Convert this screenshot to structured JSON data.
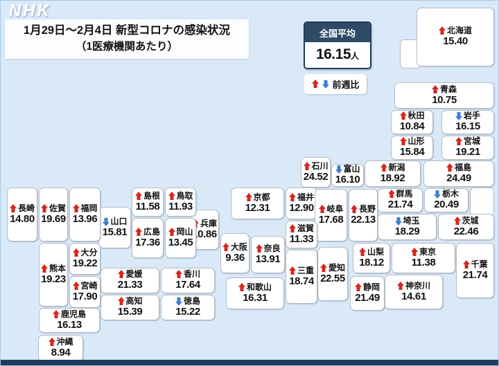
{
  "logo": "NHK",
  "title": {
    "line1": "1月29日～2月4日 新型コロナの感染状況",
    "line2": "（1医療機関あたり）"
  },
  "national_average": {
    "label": "全国平均",
    "value": "16.15",
    "unit": "人"
  },
  "legend": {
    "label": "前週比"
  },
  "colors": {
    "up_arrow": "#d7261d",
    "down_arrow": "#3d7fd4",
    "background": "#d9e9f7",
    "national_header_bg": "#2d4b66",
    "bottom_bar": "#1e3c60"
  },
  "prefectures": [
    {
      "name": "北海道",
      "value": "15.40",
      "trend": "up"
    },
    {
      "name": "青森",
      "value": "10.75",
      "trend": "up"
    },
    {
      "name": "秋田",
      "value": "10.84",
      "trend": "up"
    },
    {
      "name": "岩手",
      "value": "16.15",
      "trend": "down"
    },
    {
      "name": "山形",
      "value": "15.84",
      "trend": "up"
    },
    {
      "name": "宮城",
      "value": "19.21",
      "trend": "up"
    },
    {
      "name": "福島",
      "value": "24.49",
      "trend": "up"
    },
    {
      "name": "新潟",
      "value": "18.92",
      "trend": "up"
    },
    {
      "name": "富山",
      "value": "16.10",
      "trend": "down"
    },
    {
      "name": "石川",
      "value": "24.52",
      "trend": "up"
    },
    {
      "name": "福井",
      "value": "12.90",
      "trend": "up"
    },
    {
      "name": "長野",
      "value": "22.13",
      "trend": "up"
    },
    {
      "name": "岐阜",
      "value": "17.68",
      "trend": "up"
    },
    {
      "name": "山梨",
      "value": "18.12",
      "trend": "up"
    },
    {
      "name": "静岡",
      "value": "21.49",
      "trend": "up"
    },
    {
      "name": "愛知",
      "value": "22.55",
      "trend": "up"
    },
    {
      "name": "群馬",
      "value": "21.74",
      "trend": "up"
    },
    {
      "name": "栃木",
      "value": "20.49",
      "trend": "down"
    },
    {
      "name": "埼玉",
      "value": "18.29",
      "trend": "down"
    },
    {
      "name": "茨城",
      "value": "22.46",
      "trend": "up"
    },
    {
      "name": "東京",
      "value": "11.38",
      "trend": "up"
    },
    {
      "name": "千葉",
      "value": "21.74",
      "trend": "up"
    },
    {
      "name": "神奈川",
      "value": "14.61",
      "trend": "up"
    },
    {
      "name": "京都",
      "value": "12.31",
      "trend": "up"
    },
    {
      "name": "滋賀",
      "value": "11.33",
      "trend": "up"
    },
    {
      "name": "奈良",
      "value": "13.91",
      "trend": "up"
    },
    {
      "name": "大阪",
      "value": "9.36",
      "trend": "up"
    },
    {
      "name": "兵庫",
      "value": "10.86",
      "trend": "up"
    },
    {
      "name": "和歌山",
      "value": "16.31",
      "trend": "up"
    },
    {
      "name": "三重",
      "value": "18.74",
      "trend": "up"
    },
    {
      "name": "鳥取",
      "value": "11.93",
      "trend": "up"
    },
    {
      "name": "島根",
      "value": "11.58",
      "trend": "up"
    },
    {
      "name": "岡山",
      "value": "13.45",
      "trend": "up"
    },
    {
      "name": "広島",
      "value": "17.36",
      "trend": "up"
    },
    {
      "name": "山口",
      "value": "15.81",
      "trend": "down"
    },
    {
      "name": "香川",
      "value": "17.64",
      "trend": "up"
    },
    {
      "name": "愛媛",
      "value": "21.33",
      "trend": "up"
    },
    {
      "name": "徳島",
      "value": "15.22",
      "trend": "down"
    },
    {
      "name": "高知",
      "value": "15.39",
      "trend": "up"
    },
    {
      "name": "福岡",
      "value": "13.96",
      "trend": "up"
    },
    {
      "name": "佐賀",
      "value": "19.69",
      "trend": "up"
    },
    {
      "name": "長崎",
      "value": "14.80",
      "trend": "up"
    },
    {
      "name": "熊本",
      "value": "19.23",
      "trend": "up"
    },
    {
      "name": "大分",
      "value": "19.22",
      "trend": "up"
    },
    {
      "name": "宮崎",
      "value": "17.90",
      "trend": "up"
    },
    {
      "name": "鹿児島",
      "value": "16.13",
      "trend": "up"
    },
    {
      "name": "沖縄",
      "value": "8.94",
      "trend": "up"
    }
  ]
}
